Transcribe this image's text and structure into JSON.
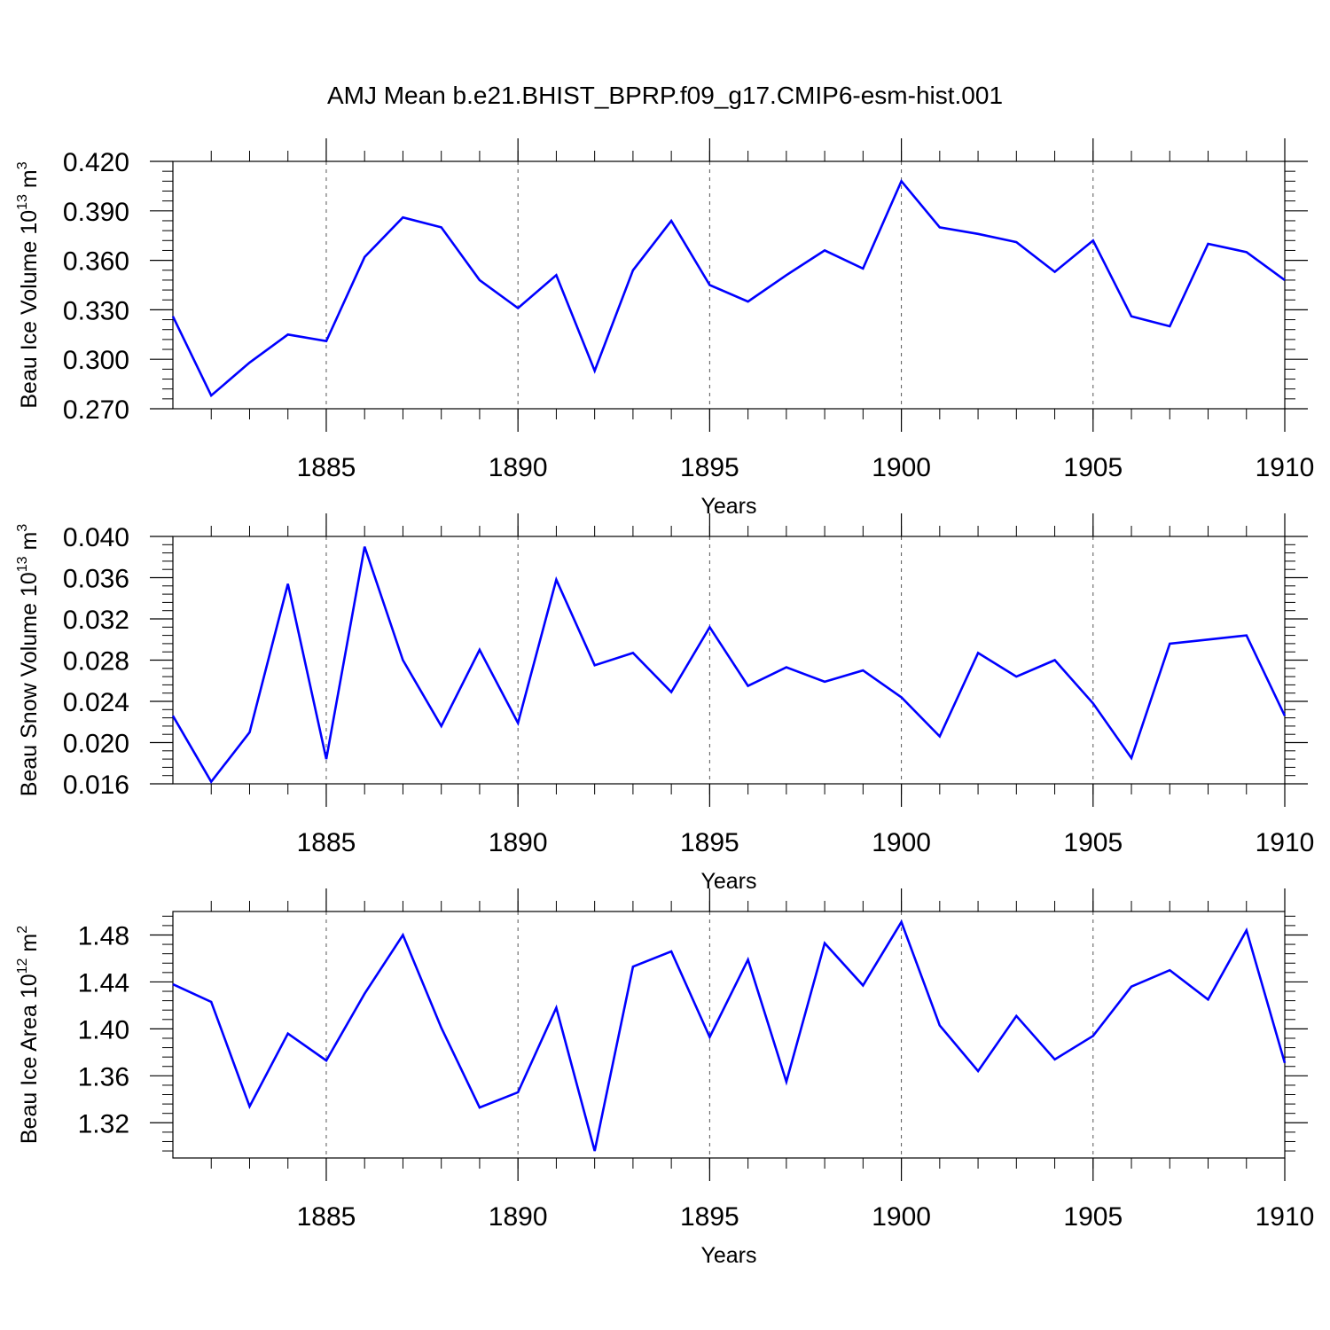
{
  "title": "AMJ Mean b.e21.BHIST_BPRP.f09_g17.CMIP6-esm-hist.001",
  "colors": {
    "line": "#0000ff",
    "axis": "#000000",
    "grid": "#555555"
  },
  "chart_data": [
    {
      "type": "line",
      "ylabel": "Beau Ice Volume",
      "yunit_base": "10",
      "yunit_exp": "13",
      "yunit_rest": "m",
      "yunit_rest_exp": "3",
      "xlabel": "Years",
      "xlim": [
        1881,
        1910
      ],
      "ylim": [
        0.27,
        0.42
      ],
      "yticks": [
        "0.420",
        "0.390",
        "0.360",
        "0.330",
        "0.300",
        "0.270"
      ],
      "xticks": [
        "1885",
        "1890",
        "1895",
        "1900",
        "1905",
        "1910"
      ],
      "x": [
        1881,
        1882,
        1883,
        1884,
        1885,
        1886,
        1887,
        1888,
        1889,
        1890,
        1891,
        1892,
        1893,
        1894,
        1895,
        1896,
        1897,
        1898,
        1899,
        1900,
        1901,
        1902,
        1903,
        1904,
        1905,
        1906,
        1907,
        1908,
        1909,
        1910
      ],
      "values": [
        0.326,
        0.278,
        0.298,
        0.315,
        0.311,
        0.362,
        0.386,
        0.38,
        0.348,
        0.331,
        0.351,
        0.293,
        0.354,
        0.384,
        0.345,
        0.335,
        0.351,
        0.366,
        0.355,
        0.408,
        0.38,
        0.376,
        0.371,
        0.353,
        0.372,
        0.326,
        0.32,
        0.37,
        0.365,
        0.348
      ]
    },
    {
      "type": "line",
      "ylabel": "Beau Snow Volume",
      "yunit_base": "10",
      "yunit_exp": "13",
      "yunit_rest": "m",
      "yunit_rest_exp": "3",
      "xlabel": "Years",
      "xlim": [
        1881,
        1910
      ],
      "ylim": [
        0.016,
        0.04
      ],
      "yticks": [
        "0.040",
        "0.036",
        "0.032",
        "0.028",
        "0.024",
        "0.020",
        "0.016"
      ],
      "xticks": [
        "1885",
        "1890",
        "1895",
        "1900",
        "1905",
        "1910"
      ],
      "x": [
        1881,
        1882,
        1883,
        1884,
        1885,
        1886,
        1887,
        1888,
        1889,
        1890,
        1891,
        1892,
        1893,
        1894,
        1895,
        1896,
        1897,
        1898,
        1899,
        1900,
        1901,
        1902,
        1903,
        1904,
        1905,
        1906,
        1907,
        1908,
        1909,
        1910
      ],
      "values": [
        0.0226,
        0.0162,
        0.021,
        0.0354,
        0.0184,
        0.039,
        0.028,
        0.0216,
        0.029,
        0.0219,
        0.0358,
        0.0275,
        0.0287,
        0.0249,
        0.0312,
        0.0255,
        0.0273,
        0.0259,
        0.027,
        0.0244,
        0.0206,
        0.0287,
        0.0264,
        0.028,
        0.0238,
        0.0185,
        0.0296,
        0.03,
        0.0304,
        0.0226
      ]
    },
    {
      "type": "line",
      "ylabel": "Beau Ice Area",
      "yunit_base": "10",
      "yunit_exp": "12",
      "yunit_rest": "m",
      "yunit_rest_exp": "2",
      "xlabel": "Years",
      "xlim": [
        1881,
        1910
      ],
      "ylim": [
        1.29,
        1.5
      ],
      "yticks": [
        "1.48",
        "1.44",
        "1.40",
        "1.36",
        "1.32"
      ],
      "xticks": [
        "1885",
        "1890",
        "1895",
        "1900",
        "1905",
        "1910"
      ],
      "x": [
        1881,
        1882,
        1883,
        1884,
        1885,
        1886,
        1887,
        1888,
        1889,
        1890,
        1891,
        1892,
        1893,
        1894,
        1895,
        1896,
        1897,
        1898,
        1899,
        1900,
        1901,
        1902,
        1903,
        1904,
        1905,
        1906,
        1907,
        1908,
        1909,
        1910
      ],
      "values": [
        1.438,
        1.423,
        1.334,
        1.396,
        1.373,
        1.43,
        1.48,
        1.401,
        1.333,
        1.346,
        1.418,
        1.296,
        1.453,
        1.466,
        1.393,
        1.459,
        1.355,
        1.473,
        1.437,
        1.491,
        1.403,
        1.364,
        1.411,
        1.374,
        1.394,
        1.436,
        1.45,
        1.425,
        1.484,
        1.371
      ]
    }
  ]
}
